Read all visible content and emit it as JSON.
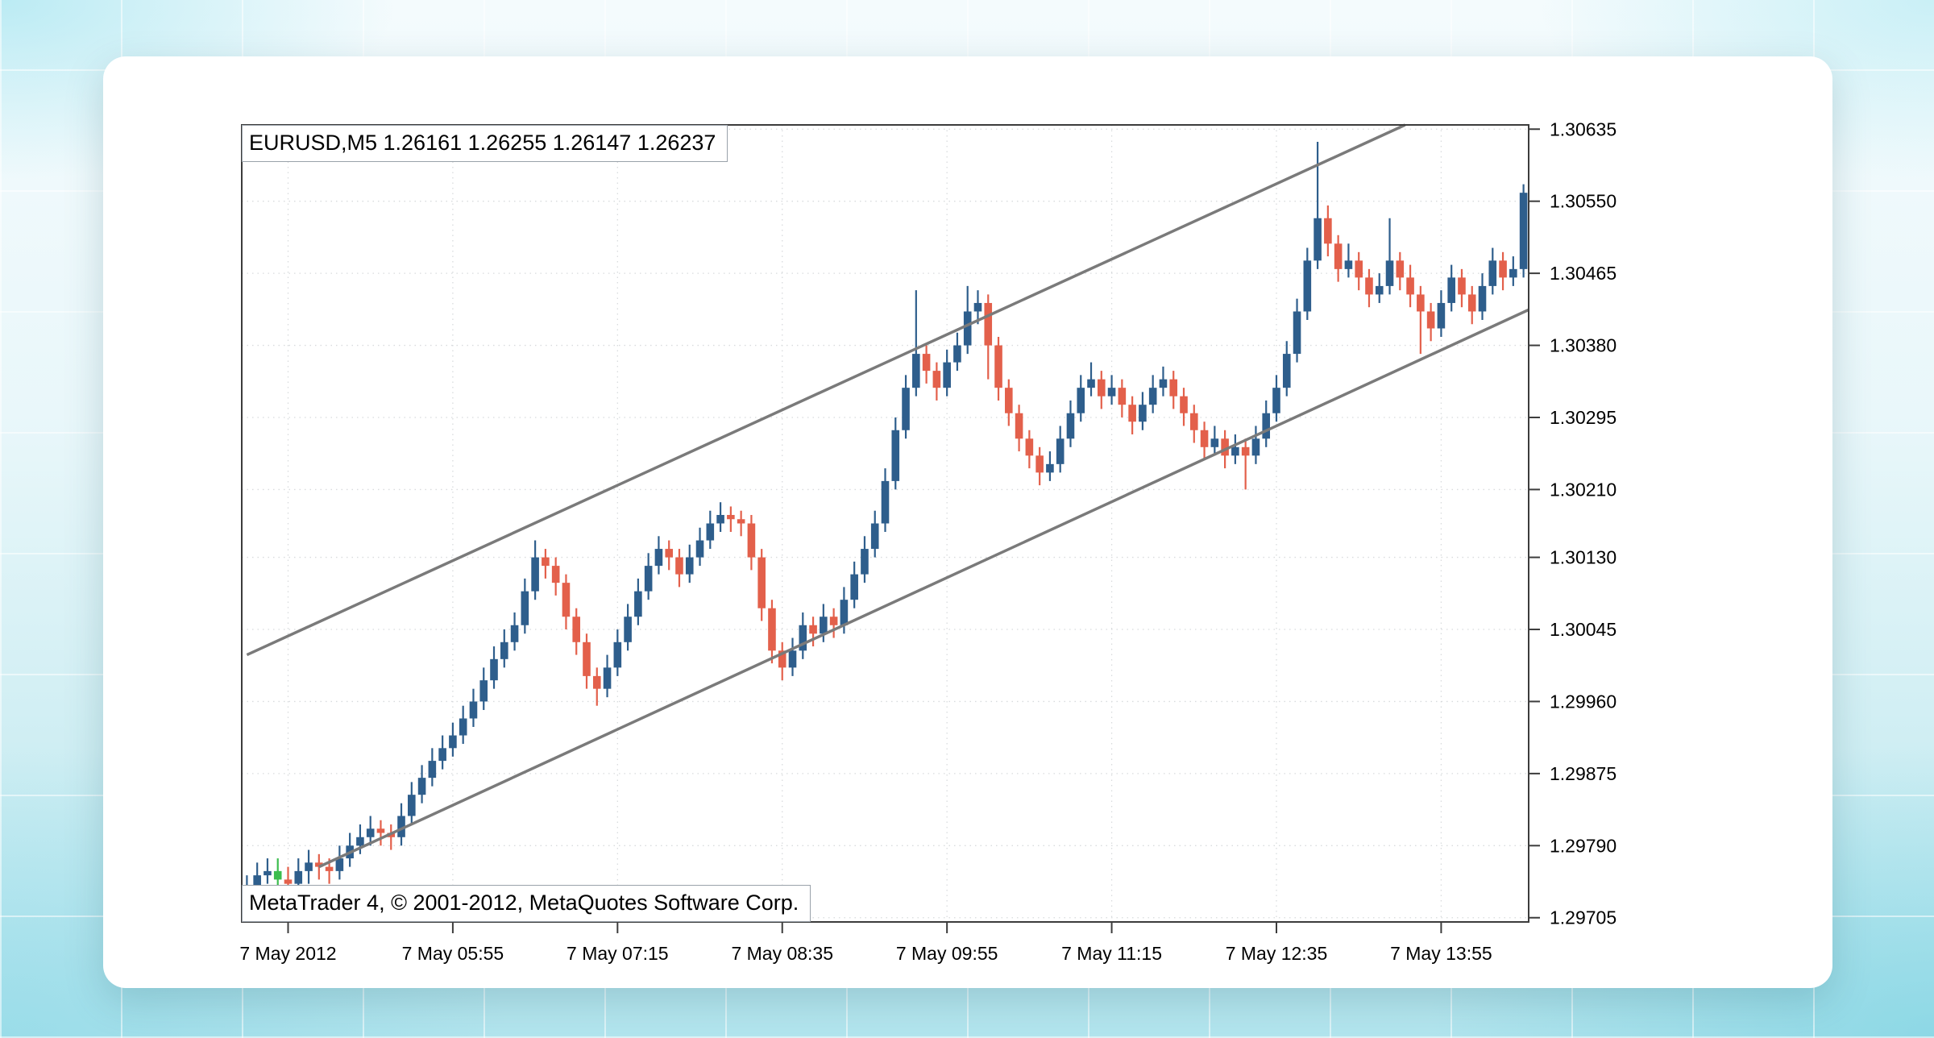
{
  "chart": {
    "title_line": "EURUSD,M5  1.26161 1.26255 1.26147 1.26237",
    "copyright": "MetaTrader 4, © 2001-2012, MetaQuotes Software Corp."
  },
  "chart_data": {
    "type": "candlestick",
    "title": "EURUSD,M5",
    "symbol": "EURUSD",
    "timeframe": "M5",
    "header_quote_values": [
      "1.26161",
      "1.26255",
      "1.26147",
      "1.26237"
    ],
    "bars": 125,
    "y_range": [
      1.297,
      1.3064
    ],
    "grid": "dotted",
    "legend_position": "none",
    "y_ticks": [
      {
        "value": 1.30635,
        "label": "1.30635"
      },
      {
        "value": 1.3055,
        "label": "1.30550"
      },
      {
        "value": 1.30465,
        "label": "1.30465"
      },
      {
        "value": 1.3038,
        "label": "1.30380"
      },
      {
        "value": 1.30295,
        "label": "1.30295"
      },
      {
        "value": 1.3021,
        "label": "1.30210"
      },
      {
        "value": 1.3013,
        "label": "1.30130"
      },
      {
        "value": 1.30045,
        "label": "1.30045"
      },
      {
        "value": 1.2996,
        "label": "1.29960"
      },
      {
        "value": 1.29875,
        "label": "1.29875"
      },
      {
        "value": 1.2979,
        "label": "1.29790"
      },
      {
        "value": 1.29705,
        "label": "1.29705"
      }
    ],
    "x_ticks": [
      {
        "bar": 4,
        "label": "7 May 2012"
      },
      {
        "bar": 20,
        "label": "7 May 05:55"
      },
      {
        "bar": 36,
        "label": "7 May 07:15"
      },
      {
        "bar": 52,
        "label": "7 May 08:35"
      },
      {
        "bar": 68,
        "label": "7 May 09:55"
      },
      {
        "bar": 84,
        "label": "7 May 11:15"
      },
      {
        "bar": 100,
        "label": "7 May 12:35"
      },
      {
        "bar": 116,
        "label": "7 May 13:55"
      }
    ],
    "colors": {
      "bull": "#2E5E8C",
      "bear": "#E3604B",
      "highlight": "#3CBD4E"
    },
    "highlight_bars": [
      3
    ],
    "channel": {
      "color": "#7a7a7a",
      "width": 3.5,
      "lower": [
        [
          7,
          1.29765
        ],
        [
          124.5,
          1.30422
        ]
      ],
      "upper": [
        [
          0,
          1.30015
        ],
        [
          112.5,
          1.3064
        ]
      ]
    },
    "candles": [
      [
        1.2973,
        1.29755,
        1.29715,
        1.2974
      ],
      [
        1.2974,
        1.2977,
        1.29725,
        1.29755
      ],
      [
        1.29755,
        1.29775,
        1.29745,
        1.2976
      ],
      [
        1.2976,
        1.29775,
        1.29735,
        1.2975
      ],
      [
        1.2975,
        1.29765,
        1.2973,
        1.29745
      ],
      [
        1.29745,
        1.29775,
        1.2973,
        1.2976
      ],
      [
        1.2976,
        1.29785,
        1.29745,
        1.2977
      ],
      [
        1.2977,
        1.2978,
        1.2975,
        1.29765
      ],
      [
        1.29765,
        1.29775,
        1.29745,
        1.2976
      ],
      [
        1.2976,
        1.2979,
        1.2975,
        1.29775
      ],
      [
        1.29775,
        1.29805,
        1.29765,
        1.2979
      ],
      [
        1.2979,
        1.29815,
        1.2978,
        1.298
      ],
      [
        1.298,
        1.29825,
        1.2979,
        1.2981
      ],
      [
        1.2981,
        1.2982,
        1.2979,
        1.29805
      ],
      [
        1.29805,
        1.29815,
        1.29785,
        1.298
      ],
      [
        1.298,
        1.2984,
        1.2979,
        1.29825
      ],
      [
        1.29825,
        1.29865,
        1.29815,
        1.2985
      ],
      [
        1.2985,
        1.29885,
        1.2984,
        1.2987
      ],
      [
        1.2987,
        1.29905,
        1.2986,
        1.2989
      ],
      [
        1.2989,
        1.2992,
        1.2988,
        1.29905
      ],
      [
        1.29905,
        1.29935,
        1.29895,
        1.2992
      ],
      [
        1.2992,
        1.29955,
        1.2991,
        1.2994
      ],
      [
        1.2994,
        1.29975,
        1.2993,
        1.2996
      ],
      [
        1.2996,
        1.3,
        1.2995,
        1.29985
      ],
      [
        1.29985,
        1.30025,
        1.29975,
        1.3001
      ],
      [
        1.3001,
        1.30045,
        1.3,
        1.3003
      ],
      [
        1.3003,
        1.30065,
        1.3002,
        1.3005
      ],
      [
        1.3005,
        1.30105,
        1.3004,
        1.3009
      ],
      [
        1.3009,
        1.3015,
        1.3008,
        1.3013
      ],
      [
        1.3013,
        1.3014,
        1.30105,
        1.3012
      ],
      [
        1.3012,
        1.3013,
        1.30085,
        1.301
      ],
      [
        1.301,
        1.3011,
        1.30045,
        1.3006
      ],
      [
        1.3006,
        1.3007,
        1.30015,
        1.3003
      ],
      [
        1.3003,
        1.3004,
        1.29975,
        1.2999
      ],
      [
        1.2999,
        1.3,
        1.29955,
        1.29975
      ],
      [
        1.29975,
        1.30015,
        1.29965,
        1.3
      ],
      [
        1.3,
        1.30045,
        1.2999,
        1.3003
      ],
      [
        1.3003,
        1.30075,
        1.3002,
        1.3006
      ],
      [
        1.3006,
        1.30105,
        1.3005,
        1.3009
      ],
      [
        1.3009,
        1.30135,
        1.3008,
        1.3012
      ],
      [
        1.3012,
        1.30155,
        1.3011,
        1.3014
      ],
      [
        1.3014,
        1.3015,
        1.30115,
        1.3013
      ],
      [
        1.3013,
        1.3014,
        1.30095,
        1.3011
      ],
      [
        1.3011,
        1.30145,
        1.301,
        1.3013
      ],
      [
        1.3013,
        1.30165,
        1.3012,
        1.3015
      ],
      [
        1.3015,
        1.30185,
        1.3014,
        1.3017
      ],
      [
        1.3017,
        1.30195,
        1.3016,
        1.3018
      ],
      [
        1.3018,
        1.3019,
        1.3016,
        1.30175
      ],
      [
        1.30175,
        1.30185,
        1.30155,
        1.3017
      ],
      [
        1.3017,
        1.3018,
        1.30115,
        1.3013
      ],
      [
        1.3013,
        1.3014,
        1.30055,
        1.3007
      ],
      [
        1.3007,
        1.3008,
        1.30005,
        1.3002
      ],
      [
        1.3002,
        1.3003,
        1.29985,
        1.3
      ],
      [
        1.3,
        1.30035,
        1.2999,
        1.3002
      ],
      [
        1.3002,
        1.30065,
        1.3001,
        1.3005
      ],
      [
        1.3005,
        1.3006,
        1.30025,
        1.3004
      ],
      [
        1.3004,
        1.30075,
        1.3003,
        1.3006
      ],
      [
        1.3006,
        1.3007,
        1.30035,
        1.3005
      ],
      [
        1.3005,
        1.30095,
        1.3004,
        1.3008
      ],
      [
        1.3008,
        1.30125,
        1.3007,
        1.3011
      ],
      [
        1.3011,
        1.30155,
        1.301,
        1.3014
      ],
      [
        1.3014,
        1.30185,
        1.3013,
        1.3017
      ],
      [
        1.3017,
        1.30235,
        1.3016,
        1.3022
      ],
      [
        1.3022,
        1.30295,
        1.3021,
        1.3028
      ],
      [
        1.3028,
        1.30345,
        1.3027,
        1.3033
      ],
      [
        1.3033,
        1.30445,
        1.3032,
        1.3037
      ],
      [
        1.3037,
        1.3038,
        1.30335,
        1.3035
      ],
      [
        1.3035,
        1.3036,
        1.30315,
        1.3033
      ],
      [
        1.3033,
        1.30375,
        1.3032,
        1.3036
      ],
      [
        1.3036,
        1.30395,
        1.3035,
        1.3038
      ],
      [
        1.3038,
        1.3045,
        1.3037,
        1.3042
      ],
      [
        1.3042,
        1.30445,
        1.30405,
        1.3043
      ],
      [
        1.3043,
        1.3044,
        1.3034,
        1.3038
      ],
      [
        1.3038,
        1.3039,
        1.30315,
        1.3033
      ],
      [
        1.3033,
        1.3034,
        1.30285,
        1.303
      ],
      [
        1.303,
        1.3031,
        1.30255,
        1.3027
      ],
      [
        1.3027,
        1.3028,
        1.30235,
        1.3025
      ],
      [
        1.3025,
        1.3026,
        1.30215,
        1.3023
      ],
      [
        1.3023,
        1.30255,
        1.3022,
        1.3024
      ],
      [
        1.3024,
        1.30285,
        1.3023,
        1.3027
      ],
      [
        1.3027,
        1.30315,
        1.3026,
        1.303
      ],
      [
        1.303,
        1.30345,
        1.3029,
        1.3033
      ],
      [
        1.3033,
        1.3036,
        1.3032,
        1.3034
      ],
      [
        1.3034,
        1.3035,
        1.30305,
        1.3032
      ],
      [
        1.3032,
        1.30345,
        1.3031,
        1.3033
      ],
      [
        1.3033,
        1.3034,
        1.30295,
        1.3031
      ],
      [
        1.3031,
        1.3032,
        1.30275,
        1.3029
      ],
      [
        1.3029,
        1.30325,
        1.3028,
        1.3031
      ],
      [
        1.3031,
        1.30345,
        1.303,
        1.3033
      ],
      [
        1.3033,
        1.30355,
        1.3032,
        1.3034
      ],
      [
        1.3034,
        1.3035,
        1.30305,
        1.3032
      ],
      [
        1.3032,
        1.3033,
        1.30285,
        1.303
      ],
      [
        1.303,
        1.3031,
        1.30265,
        1.3028
      ],
      [
        1.3028,
        1.3029,
        1.30245,
        1.3026
      ],
      [
        1.3026,
        1.30285,
        1.3025,
        1.3027
      ],
      [
        1.3027,
        1.3028,
        1.30235,
        1.3025
      ],
      [
        1.3025,
        1.30275,
        1.3024,
        1.3026
      ],
      [
        1.3026,
        1.3027,
        1.3021,
        1.3025
      ],
      [
        1.3025,
        1.30285,
        1.3024,
        1.3027
      ],
      [
        1.3027,
        1.30315,
        1.3026,
        1.303
      ],
      [
        1.303,
        1.30345,
        1.3029,
        1.3033
      ],
      [
        1.3033,
        1.30385,
        1.3032,
        1.3037
      ],
      [
        1.3037,
        1.30435,
        1.3036,
        1.3042
      ],
      [
        1.3042,
        1.30495,
        1.3041,
        1.3048
      ],
      [
        1.3048,
        1.3062,
        1.3047,
        1.3053
      ],
      [
        1.3053,
        1.30545,
        1.30485,
        1.305
      ],
      [
        1.305,
        1.3051,
        1.30455,
        1.3047
      ],
      [
        1.3047,
        1.305,
        1.3046,
        1.3048
      ],
      [
        1.3048,
        1.3049,
        1.30445,
        1.3046
      ],
      [
        1.3046,
        1.3047,
        1.30425,
        1.3044
      ],
      [
        1.3044,
        1.30465,
        1.3043,
        1.3045
      ],
      [
        1.3045,
        1.3053,
        1.3044,
        1.3048
      ],
      [
        1.3048,
        1.3049,
        1.30445,
        1.3046
      ],
      [
        1.3046,
        1.30475,
        1.30425,
        1.3044
      ],
      [
        1.3044,
        1.3045,
        1.3037,
        1.3042
      ],
      [
        1.3042,
        1.3043,
        1.30385,
        1.304
      ],
      [
        1.304,
        1.30445,
        1.3039,
        1.3043
      ],
      [
        1.3043,
        1.30475,
        1.3042,
        1.3046
      ],
      [
        1.3046,
        1.3047,
        1.30425,
        1.3044
      ],
      [
        1.3044,
        1.3045,
        1.30405,
        1.3042
      ],
      [
        1.3042,
        1.30465,
        1.3041,
        1.3045
      ],
      [
        1.3045,
        1.30495,
        1.3044,
        1.3048
      ],
      [
        1.3048,
        1.3049,
        1.30445,
        1.3046
      ],
      [
        1.3046,
        1.30485,
        1.3045,
        1.3047
      ],
      [
        1.3047,
        1.3057,
        1.3046,
        1.3056
      ]
    ]
  }
}
